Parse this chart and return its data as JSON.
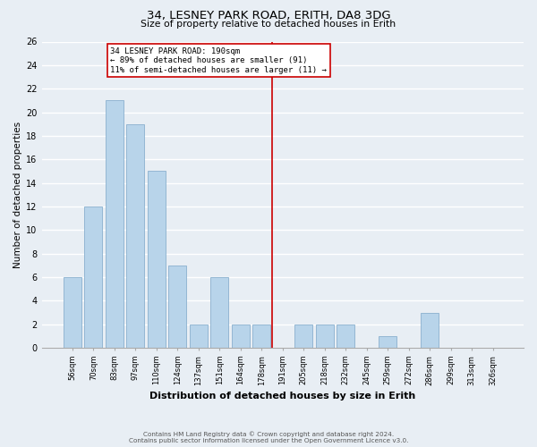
{
  "title": "34, LESNEY PARK ROAD, ERITH, DA8 3DG",
  "subtitle": "Size of property relative to detached houses in Erith",
  "xlabel": "Distribution of detached houses by size in Erith",
  "ylabel": "Number of detached properties",
  "bar_labels": [
    "56sqm",
    "70sqm",
    "83sqm",
    "97sqm",
    "110sqm",
    "124sqm",
    "137sqm",
    "151sqm",
    "164sqm",
    "178sqm",
    "191sqm",
    "205sqm",
    "218sqm",
    "232sqm",
    "245sqm",
    "259sqm",
    "272sqm",
    "286sqm",
    "299sqm",
    "313sqm",
    "326sqm"
  ],
  "bar_values": [
    6,
    12,
    21,
    19,
    15,
    7,
    2,
    6,
    2,
    2,
    0,
    2,
    2,
    2,
    0,
    1,
    0,
    3,
    0,
    0,
    0
  ],
  "bar_color": "#b8d4ea",
  "bar_edge_color": "#8ab0ce",
  "vline_color": "#cc0000",
  "annotation_title": "34 LESNEY PARK ROAD: 190sqm",
  "annotation_line1": "← 89% of detached houses are smaller (91)",
  "annotation_line2": "11% of semi-detached houses are larger (11) →",
  "annotation_box_color": "#ffffff",
  "annotation_border_color": "#cc0000",
  "ylim": [
    0,
    26
  ],
  "yticks": [
    0,
    2,
    4,
    6,
    8,
    10,
    12,
    14,
    16,
    18,
    20,
    22,
    24,
    26
  ],
  "footer1": "Contains HM Land Registry data © Crown copyright and database right 2024.",
  "footer2": "Contains public sector information licensed under the Open Government Licence v3.0.",
  "bg_color": "#e8eef4"
}
